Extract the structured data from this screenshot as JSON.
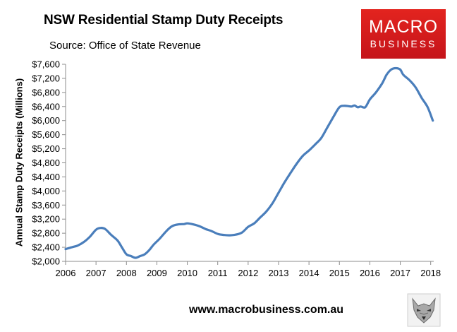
{
  "header": {
    "title": "NSW Residential Stamp Duty Receipts",
    "subtitle": "Source: Office of State Revenue"
  },
  "logo": {
    "line1": "MACRO",
    "line2": "BUSINESS"
  },
  "footer": {
    "url": "www.macrobusiness.com.au"
  },
  "colors": {
    "line": "#4a7ebb",
    "logo_red": "#d81e1e"
  },
  "chart_data": {
    "type": "line",
    "title": "NSW Residential Stamp Duty Receipts",
    "subtitle": "Source: Office of State Revenue",
    "xlabel": "",
    "ylabel": "Annual Stamp Duty Receipts (Millions)",
    "xlim": [
      2006,
      2018.1
    ],
    "ylim": [
      2000,
      7600
    ],
    "x_ticks": [
      2006,
      2007,
      2008,
      2009,
      2010,
      2011,
      2012,
      2013,
      2014,
      2015,
      2016,
      2017,
      2018
    ],
    "x_tick_labels": [
      "2006",
      "2007",
      "2008",
      "2009",
      "2010",
      "2011",
      "2012",
      "2013",
      "2014",
      "2015",
      "2016",
      "2017",
      "2018"
    ],
    "y_ticks": [
      2000,
      2400,
      2800,
      3200,
      3600,
      4000,
      4400,
      4800,
      5200,
      5600,
      6000,
      6400,
      6800,
      7200,
      7600
    ],
    "y_tick_labels": [
      "$2,000",
      "$2,400",
      "$2,800",
      "$3,200",
      "$3,600",
      "$4,000",
      "$4,400",
      "$4,800",
      "$5,200",
      "$5,600",
      "$6,000",
      "$6,400",
      "$6,800",
      "$7,200",
      "$7,600"
    ],
    "grid": false,
    "series": [
      {
        "name": "Annual Stamp Duty Receipts",
        "x": [
          2006.0,
          2006.2,
          2006.4,
          2006.6,
          2006.8,
          2007.0,
          2007.15,
          2007.3,
          2007.5,
          2007.7,
          2007.85,
          2008.0,
          2008.15,
          2008.3,
          2008.45,
          2008.6,
          2008.75,
          2008.9,
          2009.1,
          2009.3,
          2009.5,
          2009.7,
          2009.9,
          2010.0,
          2010.2,
          2010.4,
          2010.6,
          2010.8,
          2011.0,
          2011.2,
          2011.4,
          2011.6,
          2011.8,
          2012.0,
          2012.2,
          2012.4,
          2012.6,
          2012.8,
          2013.0,
          2013.2,
          2013.4,
          2013.6,
          2013.8,
          2014.0,
          2014.2,
          2014.4,
          2014.6,
          2014.8,
          2015.0,
          2015.15,
          2015.3,
          2015.4,
          2015.5,
          2015.6,
          2015.7,
          2015.85,
          2016.0,
          2016.2,
          2016.4,
          2016.55,
          2016.7,
          2016.85,
          2017.0,
          2017.1,
          2017.3,
          2017.5,
          2017.7,
          2017.9,
          2018.07
        ],
        "values": [
          2350,
          2400,
          2450,
          2550,
          2700,
          2900,
          2950,
          2920,
          2750,
          2600,
          2400,
          2200,
          2150,
          2100,
          2150,
          2200,
          2320,
          2480,
          2650,
          2850,
          3000,
          3050,
          3060,
          3080,
          3050,
          3000,
          2920,
          2860,
          2780,
          2750,
          2740,
          2760,
          2820,
          2980,
          3080,
          3250,
          3420,
          3650,
          3950,
          4250,
          4520,
          4780,
          5000,
          5150,
          5320,
          5500,
          5800,
          6100,
          6380,
          6420,
          6410,
          6400,
          6430,
          6380,
          6400,
          6380,
          6600,
          6800,
          7050,
          7300,
          7450,
          7490,
          7450,
          7300,
          7150,
          6950,
          6650,
          6380,
          6000
        ]
      }
    ]
  }
}
